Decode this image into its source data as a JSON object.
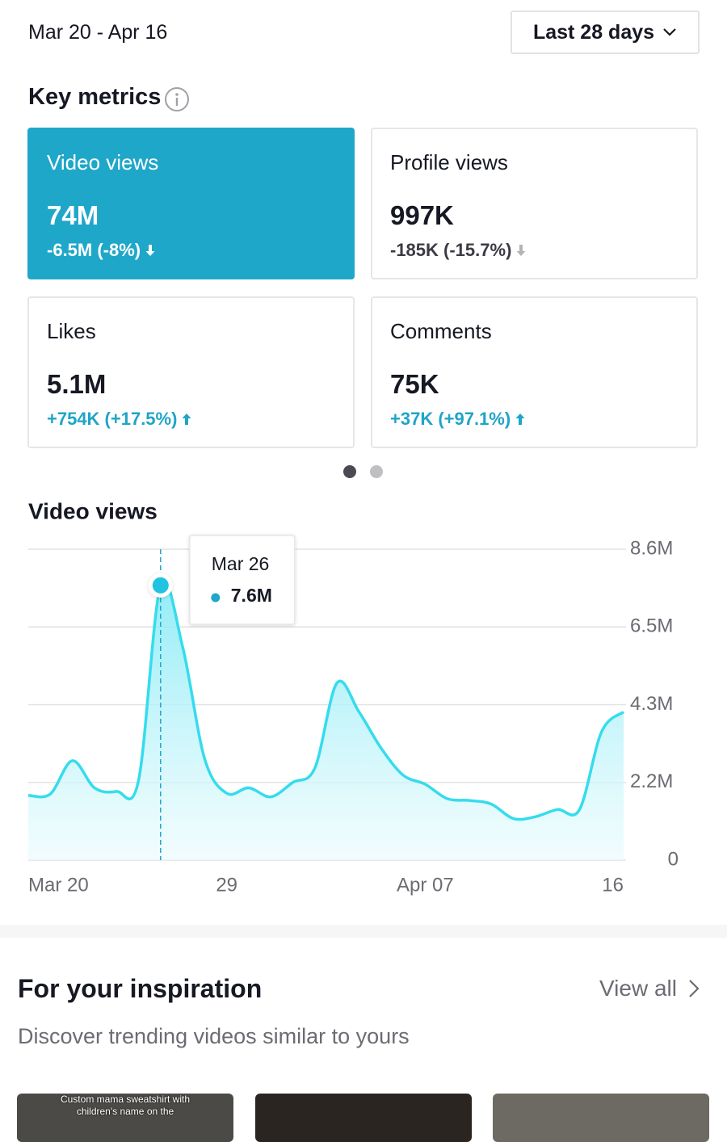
{
  "header": {
    "date_range": "Mar 20 - Apr 16",
    "period_button": "Last 28 days"
  },
  "key_metrics": {
    "title": "Key metrics",
    "cards": [
      {
        "name": "Video views",
        "value": "74M",
        "change": "-6.5M (-8%)"
      },
      {
        "name": "Profile views",
        "value": "997K",
        "change": "-185K (-15.7%)"
      },
      {
        "name": "Likes",
        "value": "5.1M",
        "change": "+754K (+17.5%)"
      },
      {
        "name": "Comments",
        "value": "75K",
        "change": "+37K (+97.1%)"
      }
    ]
  },
  "chart_data": {
    "type": "area",
    "title": "Video views",
    "categories": [
      "Mar 20",
      null,
      null,
      null,
      null,
      null,
      null,
      null,
      null,
      "29",
      null,
      null,
      null,
      null,
      null,
      null,
      null,
      null,
      "Apr 07",
      null,
      null,
      null,
      null,
      null,
      null,
      null,
      null,
      "16"
    ],
    "values": [
      1790000,
      1830000,
      2750000,
      2000000,
      1900000,
      2200000,
      7600000,
      5900000,
      2800000,
      1850000,
      2000000,
      1750000,
      2150000,
      2550000,
      4900000,
      4100000,
      3100000,
      2350000,
      2100000,
      1700000,
      1650000,
      1550000,
      1150000,
      1200000,
      1400000,
      1400000,
      3550000,
      4100000
    ],
    "value_labels": [
      null,
      null,
      null,
      null,
      null,
      null,
      "7.6M",
      null,
      null,
      null,
      null,
      null,
      null,
      null,
      null,
      null,
      null,
      null,
      null,
      null,
      null,
      null,
      null,
      null,
      null,
      null,
      null,
      null
    ],
    "tooltip_date": "Mar 26",
    "color": "#35dced",
    "ylim": [
      0,
      8600000
    ],
    "yticks": [
      0,
      {
        "value": 2150000,
        "label": "2.2M"
      },
      {
        "value": 4300000,
        "label": "4.3M"
      },
      {
        "value": 6450000,
        "label": "6.5M"
      },
      {
        "value": 8600000,
        "label": "8.6M"
      }
    ],
    "grid": true
  },
  "inspiration": {
    "title": "For your inspiration",
    "view_all": "View all",
    "subtitle": "Discover trending videos similar to yours",
    "thumbnail_caption": "Custom mama sweatshirt with children's name on the"
  }
}
